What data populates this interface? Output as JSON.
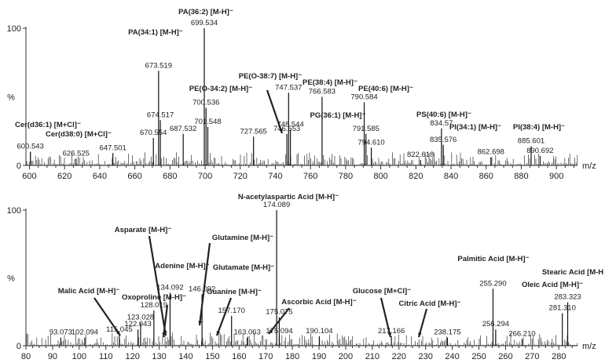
{
  "chart_data": [
    {
      "type": "mass-spectrum",
      "xlabel": "m/z",
      "ylabel": "%",
      "xlim": [
        598,
        912
      ],
      "ylim": [
        0,
        100
      ],
      "xticks": [
        600,
        620,
        640,
        660,
        680,
        700,
        720,
        740,
        760,
        780,
        800,
        820,
        840,
        860,
        880,
        900
      ],
      "yticks": [
        {
          "v": 100,
          "t": "100"
        },
        {
          "v": 0,
          "t": "0"
        }
      ],
      "peaks": [
        {
          "x": 600.543,
          "y": 10,
          "label": "600.543"
        },
        {
          "x": 626.525,
          "y": 5,
          "label": "626.525"
        },
        {
          "x": 647.501,
          "y": 9,
          "label": "647.501"
        },
        {
          "x": 670.554,
          "y": 20,
          "label": "670.554"
        },
        {
          "x": 673.519,
          "y": 69,
          "label": "673.519"
        },
        {
          "x": 674.517,
          "y": 33,
          "label": "674.517"
        },
        {
          "x": 687.532,
          "y": 23,
          "label": "687.532"
        },
        {
          "x": 699.534,
          "y": 100,
          "label": "699.534"
        },
        {
          "x": 700.536,
          "y": 42,
          "label": "700.536"
        },
        {
          "x": 701.548,
          "y": 28,
          "label": "701.548"
        },
        {
          "x": 727.565,
          "y": 21,
          "label": "727.565"
        },
        {
          "x": 746.553,
          "y": 23,
          "label": "746.553"
        },
        {
          "x": 747.537,
          "y": 53,
          "label": "747.537"
        },
        {
          "x": 748.544,
          "y": 26,
          "label": "748.544"
        },
        {
          "x": 766.583,
          "y": 50,
          "label": "766.583"
        },
        {
          "x": 790.584,
          "y": 46,
          "label": "790.584"
        },
        {
          "x": 791.585,
          "y": 23,
          "label": "791.585"
        },
        {
          "x": 794.61,
          "y": 13,
          "label": "794.610"
        },
        {
          "x": 822.618,
          "y": 4,
          "label": "822.618"
        },
        {
          "x": 834.57,
          "y": 27,
          "label": "834.57"
        },
        {
          "x": 835.576,
          "y": 15,
          "label": "835.576"
        },
        {
          "x": 862.698,
          "y": 6,
          "label": "862.698"
        },
        {
          "x": 885.601,
          "y": 14,
          "label": "885.601"
        },
        {
          "x": 890.692,
          "y": 7,
          "label": "890.692"
        }
      ],
      "annotations": [
        {
          "text": "PA(36:2) [M-H]⁻",
          "x": 699.534
        },
        {
          "text": "PA(34:1) [M-H]⁻",
          "x": 673.519
        },
        {
          "text": "PE(O-34:2) [M-H]⁻",
          "x": 700.536
        },
        {
          "text": "PE(O-38:7) [M-H]⁻",
          "x": 747.537
        },
        {
          "text": "PE(38:4) [M-H]⁻",
          "x": 766.583
        },
        {
          "text": "PE(40:6) [M-H]⁻",
          "x": 790.584
        },
        {
          "text": "PG(36:1) [M-H]⁻",
          "x": 776
        },
        {
          "text": "Cer(d36:1) [M+Cl]⁻",
          "x": 600.543
        },
        {
          "text": "Cer(d38:0) [M+Cl]⁻",
          "x": 626.525
        },
        {
          "text": "PS(40:6) [M-H]⁻",
          "x": 834.57
        },
        {
          "text": "PI(34:1) [M-H]⁻",
          "x": 835.576
        },
        {
          "text": "PI(38:4) [M-H]⁻",
          "x": 885.601
        }
      ]
    },
    {
      "type": "mass-spectrum",
      "xlabel": "m/z",
      "ylabel": "%",
      "xlim": [
        80,
        287
      ],
      "ylim": [
        0,
        100
      ],
      "xticks": [
        80,
        90,
        100,
        110,
        120,
        130,
        140,
        150,
        160,
        170,
        180,
        190,
        200,
        210,
        220,
        230,
        240,
        250,
        260,
        270,
        280
      ],
      "yticks": [
        {
          "v": 100,
          "t": "100"
        },
        {
          "v": 0,
          "t": "0"
        }
      ],
      "peaks": [
        {
          "x": 93.073,
          "y": 6,
          "label": "93.073"
        },
        {
          "x": 102.094,
          "y": 6,
          "label": "102.094"
        },
        {
          "x": 115.045,
          "y": 8,
          "label": "115.045"
        },
        {
          "x": 122.043,
          "y": 12,
          "label": "122.043"
        },
        {
          "x": 123.028,
          "y": 17,
          "label": "123.028"
        },
        {
          "x": 128.019,
          "y": 26,
          "label": "128.019"
        },
        {
          "x": 134.092,
          "y": 39,
          "label": "134.092"
        },
        {
          "x": 146.092,
          "y": 38,
          "label": "146.092"
        },
        {
          "x": 157.17,
          "y": 22,
          "label": "157.170"
        },
        {
          "x": 163.063,
          "y": 6,
          "label": "163.063"
        },
        {
          "x": 174.089,
          "y": 100,
          "label": "174.089"
        },
        {
          "x": 175.075,
          "y": 21,
          "label": "175.075"
        },
        {
          "x": 175.094,
          "y": 7,
          "label": "175.094"
        },
        {
          "x": 190.104,
          "y": 7,
          "label": "190.104"
        },
        {
          "x": 217.166,
          "y": 7,
          "label": "217.166"
        },
        {
          "x": 238.175,
          "y": 6,
          "label": "238.175"
        },
        {
          "x": 255.29,
          "y": 42,
          "label": "255.290"
        },
        {
          "x": 256.294,
          "y": 12,
          "label": "256.294"
        },
        {
          "x": 266.21,
          "y": 5,
          "label": "266.210"
        },
        {
          "x": 281.31,
          "y": 24,
          "label": "281.310"
        },
        {
          "x": 283.323,
          "y": 32,
          "label": "283.323"
        }
      ],
      "annotations": [
        {
          "text": "N-acetylaspartic Acid [M-H]⁻",
          "x": 174.089
        },
        {
          "text": "Asparate [M-H]⁻",
          "x": 132
        },
        {
          "text": "Glutamine [M-H]⁻",
          "x": 146
        },
        {
          "text": "Adenine [M-H]⁻",
          "x": 134.092
        },
        {
          "text": "Glutamate [M-H]⁻",
          "x": 146.092
        },
        {
          "text": "Malic Acid [M-H]⁻",
          "x": 133
        },
        {
          "text": "Oxoproline [M-H]⁻",
          "x": 128.019
        },
        {
          "text": "Guanine [M-H]⁻",
          "x": 150
        },
        {
          "text": "Ascorbic Acid [M-H]⁻",
          "x": 175.075
        },
        {
          "text": "Glucose [M+Cl]⁻",
          "x": 215
        },
        {
          "text": "Citric Acid [M-H]⁻",
          "x": 191
        },
        {
          "text": "Palmitic Acid [M-H]⁻",
          "x": 255.29
        },
        {
          "text": "Oleic Acid [M-H]⁻",
          "x": 281.31
        },
        {
          "text": "Stearic Acid [M-H",
          "x": 283.323
        }
      ]
    }
  ]
}
